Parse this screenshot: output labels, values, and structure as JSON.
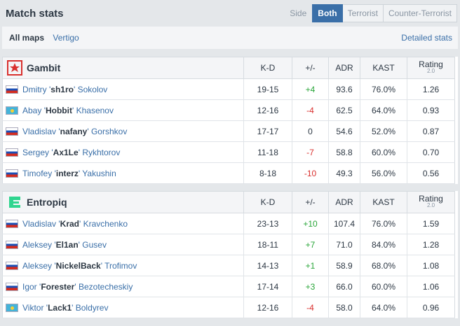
{
  "title": "Match stats",
  "side": {
    "label": "Side",
    "options": [
      "Both",
      "Terrorist",
      "Counter-Terrorist"
    ],
    "active": "Both"
  },
  "maps": {
    "items": [
      "All maps",
      "Vertigo"
    ],
    "active": "All maps",
    "detailed": "Detailed stats"
  },
  "columns": {
    "kd": "K-D",
    "pm": "+/-",
    "adr": "ADR",
    "kast": "KAST",
    "rating": "Rating",
    "rating_ver": "2.0"
  },
  "teams": [
    {
      "name": "Gambit",
      "logo_icon": "gambit-logo-icon",
      "logo_color": "#d9302e",
      "players": [
        {
          "flag": "ru",
          "first": "Dmitry",
          "nick": "sh1ro",
          "last": "Sokolov",
          "kd": "19-15",
          "pm": "+4",
          "adr": "93.6",
          "kast": "76.0%",
          "rating": "1.26"
        },
        {
          "flag": "kz",
          "first": "Abay",
          "nick": "Hobbit",
          "last": "Khasenov",
          "kd": "12-16",
          "pm": "-4",
          "adr": "62.5",
          "kast": "64.0%",
          "rating": "0.93"
        },
        {
          "flag": "ru",
          "first": "Vladislav",
          "nick": "nafany",
          "last": "Gorshkov",
          "kd": "17-17",
          "pm": "0",
          "adr": "54.6",
          "kast": "52.0%",
          "rating": "0.87"
        },
        {
          "flag": "ru",
          "first": "Sergey",
          "nick": "Ax1Le",
          "last": "Rykhtorov",
          "kd": "11-18",
          "pm": "-7",
          "adr": "58.8",
          "kast": "60.0%",
          "rating": "0.70"
        },
        {
          "flag": "ru",
          "first": "Timofey",
          "nick": "interz",
          "last": "Yakushin",
          "kd": "8-18",
          "pm": "-10",
          "adr": "49.3",
          "kast": "56.0%",
          "rating": "0.56"
        }
      ]
    },
    {
      "name": "Entropiq",
      "logo_icon": "entropiq-logo-icon",
      "logo_color": "#2fd58f",
      "players": [
        {
          "flag": "ru",
          "first": "Vladislav",
          "nick": "Krad",
          "last": "Kravchenko",
          "kd": "23-13",
          "pm": "+10",
          "adr": "107.4",
          "kast": "76.0%",
          "rating": "1.59"
        },
        {
          "flag": "ru",
          "first": "Aleksey",
          "nick": "El1an",
          "last": "Gusev",
          "kd": "18-11",
          "pm": "+7",
          "adr": "71.0",
          "kast": "84.0%",
          "rating": "1.28"
        },
        {
          "flag": "ru",
          "first": "Aleksey",
          "nick": "NickelBack",
          "last": "Trofimov",
          "kd": "14-13",
          "pm": "+1",
          "adr": "58.9",
          "kast": "68.0%",
          "rating": "1.08"
        },
        {
          "flag": "ru",
          "first": "Igor",
          "nick": "Forester",
          "last": "Bezotecheskiy",
          "kd": "17-14",
          "pm": "+3",
          "adr": "66.0",
          "kast": "60.0%",
          "rating": "1.06"
        },
        {
          "flag": "kz",
          "first": "Viktor",
          "nick": "Lack1",
          "last": "Boldyrev",
          "kd": "12-16",
          "pm": "-4",
          "adr": "58.0",
          "kast": "64.0%",
          "rating": "0.96"
        }
      ]
    }
  ]
}
